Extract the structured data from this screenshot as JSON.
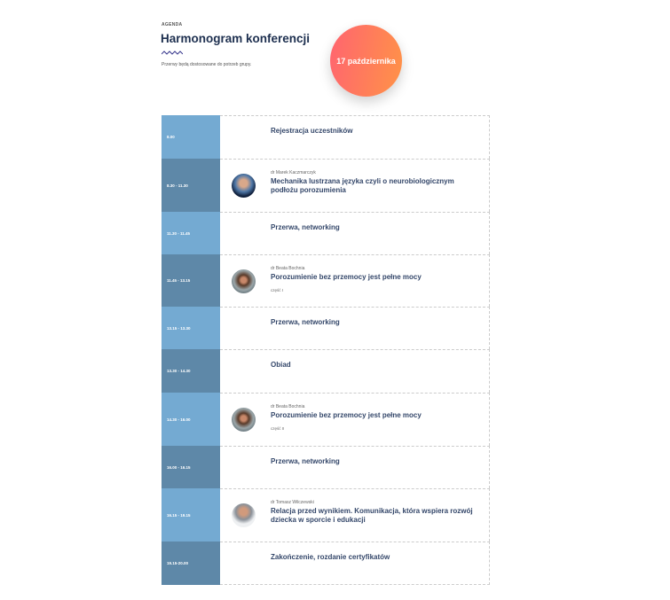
{
  "header": {
    "eyebrow": "AGENDA",
    "title": "Harmonogram konferencji",
    "subtitle": "Przerwy będą dostosowane do potrzeb grupy.",
    "date_badge": "17 października"
  },
  "colors": {
    "time_light": "#74aad2",
    "time_dark": "#5e88a8",
    "badge_start": "#ff6470",
    "badge_end": "#ff9347",
    "wave": "#3b3b8f"
  },
  "rows": [
    {
      "time": "8.00",
      "title": "Rejestracja uczestników"
    },
    {
      "time": "8.30 - 11.30",
      "speaker": "dr Marek Kaczmarczyk",
      "title": "Mechanika lustrzana języka czyli o neurobiologicznym podłożu porozumienia"
    },
    {
      "time": "11.30 - 11.45",
      "title": "Przerwa, networking"
    },
    {
      "time": "11.45 - 13.15",
      "speaker": "dr Beata Bochnia",
      "title": "Porozumienie bez przemocy jest pełne mocy",
      "part": "część I"
    },
    {
      "time": "13.15 - 13.30",
      "title": "Przerwa, networking"
    },
    {
      "time": "13.30 - 14.30",
      "title": "Obiad"
    },
    {
      "time": "14.30 - 16.00",
      "speaker": "dr Beata Bochnia",
      "title": "Porozumienie bez przemocy jest pełne mocy",
      "part": "część II"
    },
    {
      "time": "16.00 - 16.15",
      "title": "Przerwa, networking"
    },
    {
      "time": "16.15 - 19.15",
      "speaker": "dr Tomasz Wilczewski",
      "title": "Relacja przed wynikiem. Komunikacja, która wspiera rozwój dziecka w sporcie i edukacji"
    },
    {
      "time": "19.15-20.00",
      "title": "Zakończenie, rozdanie certyfikatów"
    }
  ]
}
